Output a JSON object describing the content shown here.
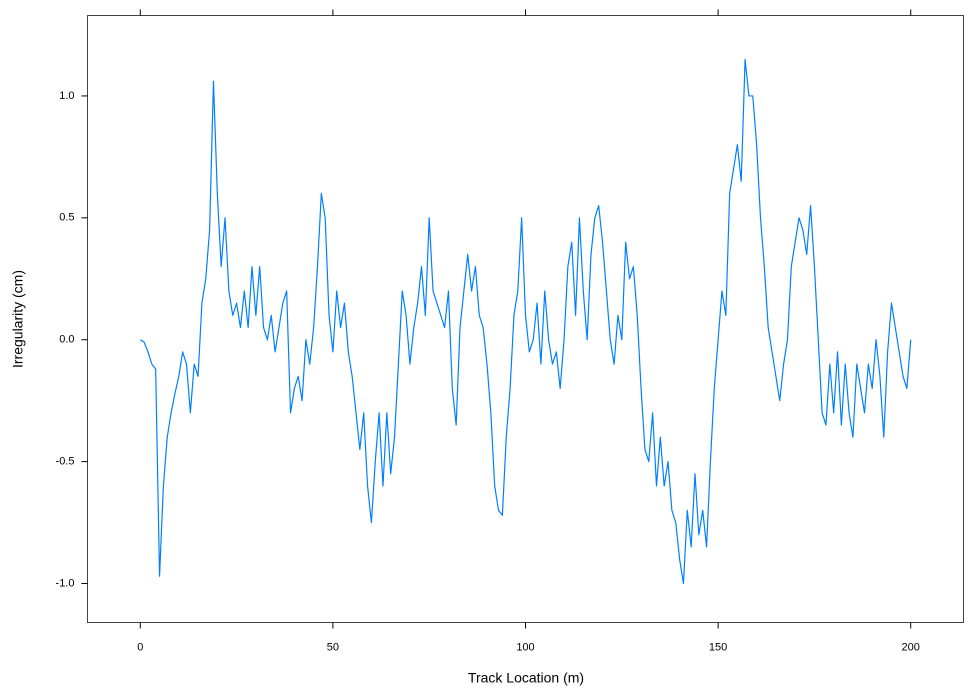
{
  "chart_data": {
    "type": "line",
    "xlabel": "Track Location (m)",
    "ylabel": "Irregularity (cm)",
    "xlim": [
      -13.7,
      213.7
    ],
    "ylim": [
      -1.16,
      1.33
    ],
    "xticks": [
      0,
      50,
      100,
      150,
      200
    ],
    "yticks": [
      {
        "value": -1,
        "label": "-1.0"
      },
      -0.5,
      {
        "value": 0,
        "label": "0.0"
      },
      0.5,
      {
        "value": 1,
        "label": "1.0"
      }
    ],
    "x": [
      0,
      1,
      2,
      3,
      4,
      5,
      6,
      7,
      8,
      9,
      10,
      11,
      12,
      13,
      14,
      15,
      16,
      17,
      18,
      19,
      20,
      21,
      22,
      23,
      24,
      25,
      26,
      27,
      28,
      29,
      30,
      31,
      32,
      33,
      34,
      35,
      36,
      37,
      38,
      39,
      40,
      41,
      42,
      43,
      44,
      45,
      46,
      47,
      48,
      49,
      50,
      51,
      52,
      53,
      54,
      55,
      56,
      57,
      58,
      59,
      60,
      61,
      62,
      63,
      64,
      65,
      66,
      67,
      68,
      69,
      70,
      71,
      72,
      73,
      74,
      75,
      76,
      77,
      78,
      79,
      80,
      81,
      82,
      83,
      84,
      85,
      86,
      87,
      88,
      89,
      90,
      91,
      92,
      93,
      94,
      95,
      96,
      97,
      98,
      99,
      100,
      101,
      102,
      103,
      104,
      105,
      106,
      107,
      108,
      109,
      110,
      111,
      112,
      113,
      114,
      115,
      116,
      117,
      118,
      119,
      120,
      121,
      122,
      123,
      124,
      125,
      126,
      127,
      128,
      129,
      130,
      131,
      132,
      133,
      134,
      135,
      136,
      137,
      138,
      139,
      140,
      141,
      142,
      143,
      144,
      145,
      146,
      147,
      148,
      149,
      150,
      151,
      152,
      153,
      154,
      155,
      156,
      157,
      158,
      159,
      160,
      161,
      162,
      163,
      164,
      165,
      166,
      167,
      168,
      169,
      170,
      171,
      172,
      173,
      174,
      175,
      176,
      177,
      178,
      179,
      180,
      181,
      182,
      183,
      184,
      185,
      186,
      187,
      188,
      189,
      190,
      191,
      192,
      193,
      194,
      195,
      196,
      197,
      198,
      199,
      200
    ],
    "series": [
      {
        "color": "#0080ff",
        "values": [
          0.0,
          -0.01,
          -0.05,
          -0.1,
          -0.12,
          -0.97,
          -0.6,
          -0.4,
          -0.3,
          -0.22,
          -0.15,
          -0.05,
          -0.1,
          -0.3,
          -0.1,
          -0.15,
          0.15,
          0.25,
          0.45,
          1.06,
          0.6,
          0.3,
          0.5,
          0.2,
          0.1,
          0.15,
          0.05,
          0.2,
          0.05,
          0.3,
          0.1,
          0.3,
          0.05,
          0.0,
          0.1,
          -0.05,
          0.05,
          0.15,
          0.2,
          -0.3,
          -0.2,
          -0.15,
          -0.25,
          0.0,
          -0.1,
          0.05,
          0.3,
          0.6,
          0.5,
          0.1,
          -0.05,
          0.2,
          0.05,
          0.15,
          -0.05,
          -0.15,
          -0.3,
          -0.45,
          -0.3,
          -0.6,
          -0.75,
          -0.5,
          -0.3,
          -0.6,
          -0.3,
          -0.55,
          -0.4,
          -0.1,
          0.2,
          0.1,
          -0.1,
          0.05,
          0.15,
          0.3,
          0.1,
          0.5,
          0.2,
          0.15,
          0.1,
          0.05,
          0.2,
          -0.2,
          -0.35,
          0.05,
          0.2,
          0.35,
          0.2,
          0.3,
          0.1,
          0.05,
          -0.1,
          -0.3,
          -0.6,
          -0.7,
          -0.72,
          -0.4,
          -0.2,
          0.1,
          0.2,
          0.5,
          0.1,
          -0.05,
          0.0,
          0.15,
          -0.1,
          0.2,
          0.0,
          -0.1,
          -0.05,
          -0.2,
          0.0,
          0.3,
          0.4,
          0.1,
          0.5,
          0.2,
          0.0,
          0.35,
          0.5,
          0.55,
          0.4,
          0.2,
          0.0,
          -0.1,
          0.1,
          0.0,
          0.4,
          0.25,
          0.3,
          0.1,
          -0.2,
          -0.45,
          -0.5,
          -0.3,
          -0.6,
          -0.4,
          -0.6,
          -0.5,
          -0.7,
          -0.75,
          -0.9,
          -1.0,
          -0.7,
          -0.85,
          -0.55,
          -0.8,
          -0.7,
          -0.85,
          -0.5,
          -0.2,
          0.0,
          0.2,
          0.1,
          0.6,
          0.7,
          0.8,
          0.65,
          1.15,
          1.0,
          1.0,
          0.8,
          0.5,
          0.3,
          0.05,
          -0.05,
          -0.15,
          -0.25,
          -0.1,
          0.0,
          0.3,
          0.4,
          0.5,
          0.45,
          0.35,
          0.55,
          0.3,
          0.0,
          -0.3,
          -0.35,
          -0.1,
          -0.3,
          -0.05,
          -0.35,
          -0.1,
          -0.3,
          -0.4,
          -0.1,
          -0.2,
          -0.3,
          -0.1,
          -0.2,
          0.0,
          -0.15,
          -0.4,
          -0.05,
          0.15,
          0.05,
          -0.05,
          -0.15,
          -0.2,
          0.0
        ]
      }
    ]
  }
}
